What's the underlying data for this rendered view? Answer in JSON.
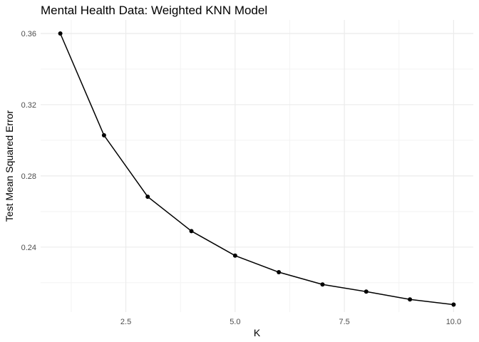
{
  "chart_data": {
    "type": "line",
    "title": "Mental Health Data: Weighted KNN Model",
    "xlabel": "K",
    "ylabel": "Test Mean Squared Error",
    "x": [
      1,
      2,
      3,
      4,
      5,
      6,
      7,
      8,
      9,
      10
    ],
    "series": [
      {
        "values": [
          0.36,
          0.3028,
          0.2683,
          0.249,
          0.2352,
          0.2259,
          0.219,
          0.215,
          0.2106,
          0.2077
        ]
      }
    ],
    "xlim": [
      0.55,
      10.45
    ],
    "ylim": [
      0.2035,
      0.3676
    ],
    "xticks": [
      2.5,
      5.0,
      7.5,
      10.0
    ],
    "xtick_labels": [
      "2.5",
      "5.0",
      "7.5",
      "10.0"
    ],
    "yticks": [
      0.24,
      0.28,
      0.32,
      0.36
    ],
    "ytick_labels": [
      "0.24",
      "0.28",
      "0.32",
      "0.36"
    ],
    "grid": true,
    "legend": "none",
    "colors": {
      "line": "#000000",
      "point": "#000000",
      "grid_major": "#ebebeb",
      "grid_minor": "#f3f3f3"
    }
  }
}
